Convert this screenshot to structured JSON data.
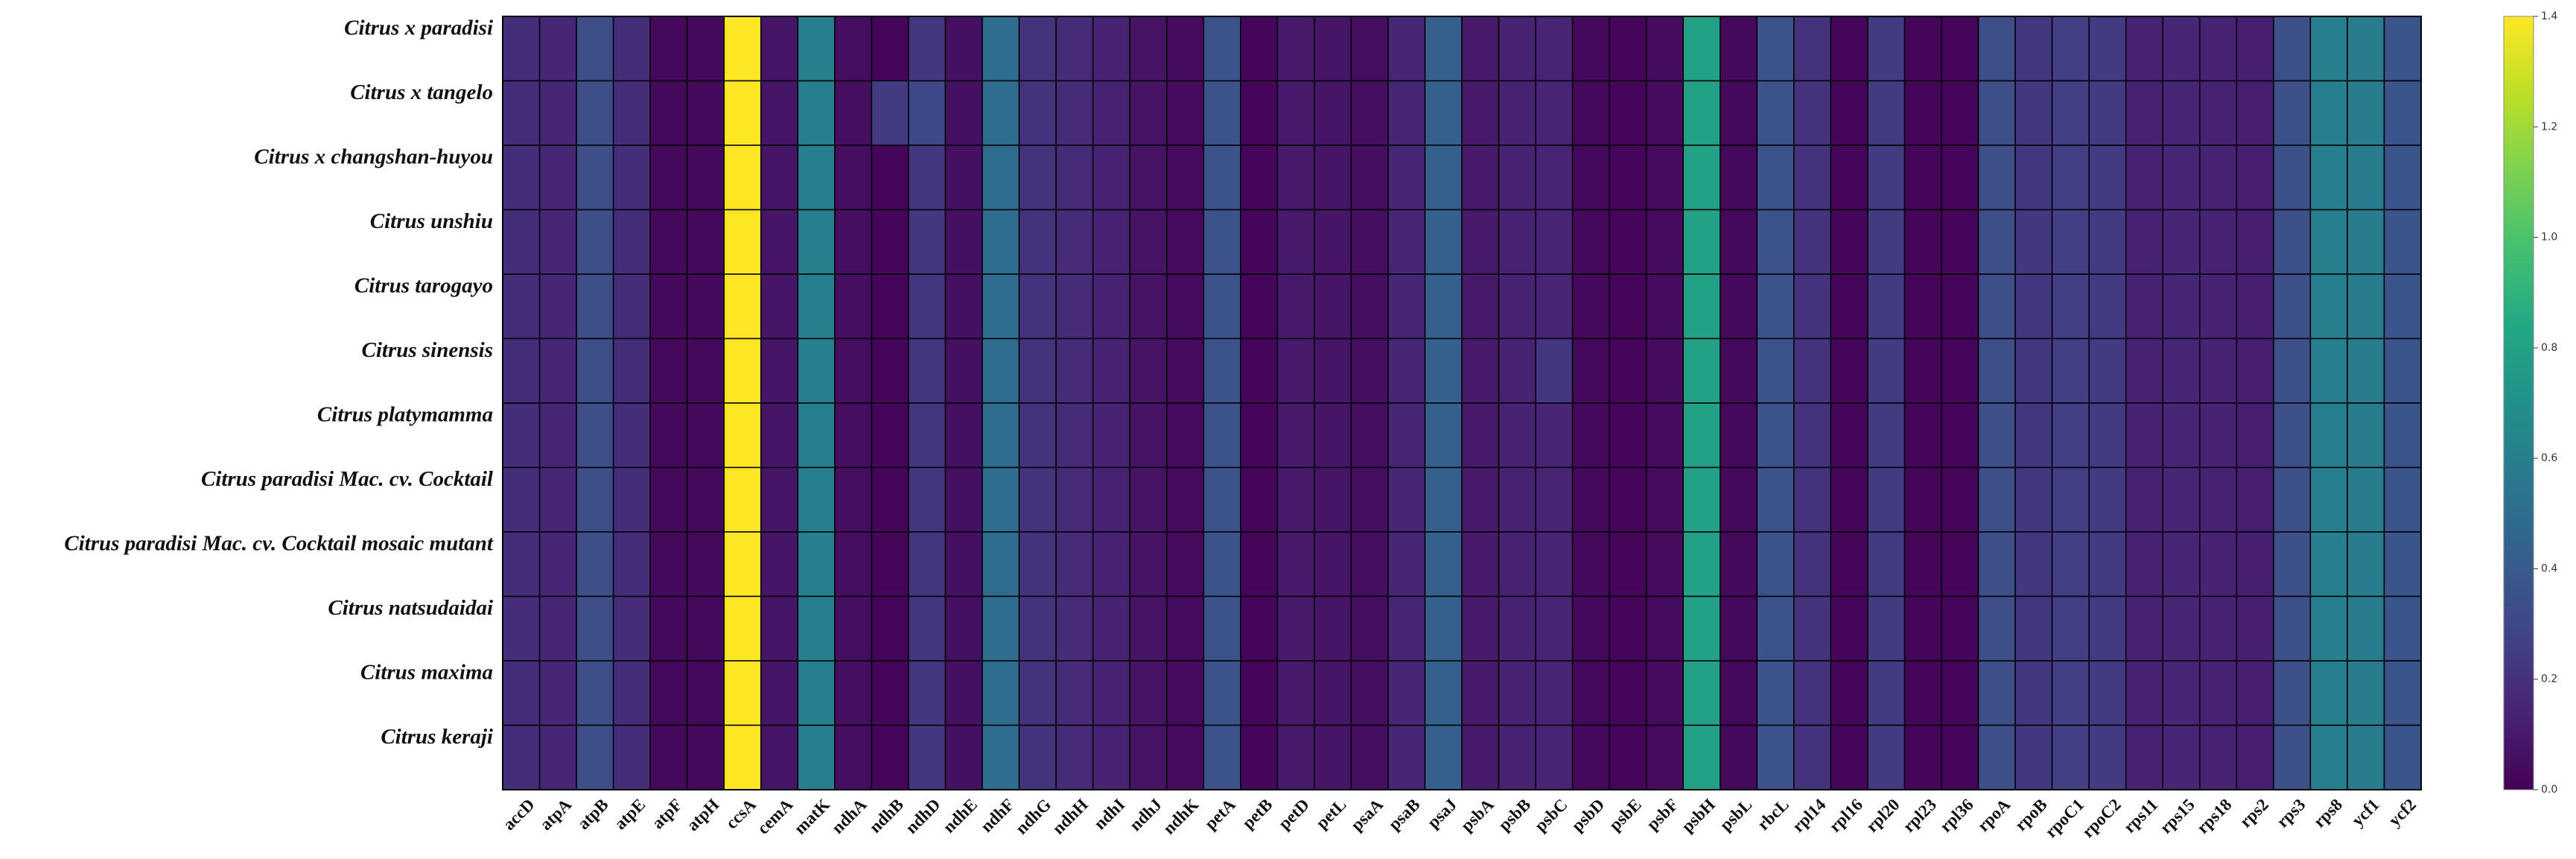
{
  "chart_data": {
    "type": "heatmap",
    "title": "",
    "xlabel": "",
    "ylabel": "",
    "rows": [
      "Citrus x paradisi",
      "Citrus x tangelo",
      "Citrus x changshan-huyou",
      "Citrus unshiu",
      "Citrus tarogayo",
      "Citrus sinensis",
      "Citrus platymamma",
      "Citrus paradisi Mac. cv. Cocktail",
      "Citrus paradisi Mac. cv. Cocktail mosaic mutant",
      "Citrus natsudaidai",
      "Citrus maxima",
      "Citrus keraji"
    ],
    "columns": [
      "accD",
      "atpA",
      "atpB",
      "atpE",
      "atpF",
      "atpH",
      "ccsA",
      "cemA",
      "matK",
      "ndhA",
      "ndhB",
      "ndhD",
      "ndhE",
      "ndhF",
      "ndhG",
      "ndhH",
      "ndhI",
      "ndhJ",
      "ndhK",
      "petA",
      "petB",
      "petD",
      "petL",
      "psaA",
      "psaB",
      "psaJ",
      "psbA",
      "psbB",
      "psbC",
      "psbD",
      "psbE",
      "psbF",
      "psbH",
      "psbL",
      "rbcL",
      "rpl14",
      "rpl16",
      "rpl20",
      "rpl23",
      "rpl36",
      "rpoA",
      "rpoB",
      "rpoC1",
      "rpoC2",
      "rps11",
      "rps15",
      "rps18",
      "rps2",
      "rps3",
      "rps8",
      "ycf1",
      "ycf2"
    ],
    "column_values": [
      0.18,
      0.15,
      0.33,
      0.18,
      0.03,
      0.03,
      1.4,
      0.08,
      0.6,
      0.05,
      0.02,
      0.22,
      0.06,
      0.5,
      0.2,
      0.17,
      0.13,
      0.07,
      0.04,
      0.35,
      0.02,
      0.1,
      0.08,
      0.05,
      0.15,
      0.42,
      0.1,
      0.13,
      0.14,
      0.03,
      0.02,
      0.04,
      0.8,
      0.03,
      0.35,
      0.2,
      0.02,
      0.24,
      0.02,
      0.02,
      0.33,
      0.22,
      0.26,
      0.24,
      0.13,
      0.15,
      0.13,
      0.12,
      0.34,
      0.6,
      0.58,
      0.37
    ],
    "overrides": [
      {
        "row": 1,
        "col": 10,
        "value": 0.24
      },
      {
        "row": 1,
        "col": 11,
        "value": 0.3
      },
      {
        "row": 5,
        "col": 28,
        "value": 0.22
      }
    ],
    "vmin": 0,
    "vmax": 1.4,
    "colormap": "viridis",
    "colorbar_ticks": [
      "0.0",
      "0.2",
      "0.4",
      "0.6",
      "0.8",
      "1.0",
      "1.2",
      "1.4"
    ],
    "grid": true,
    "colorbar_placement": "right"
  }
}
